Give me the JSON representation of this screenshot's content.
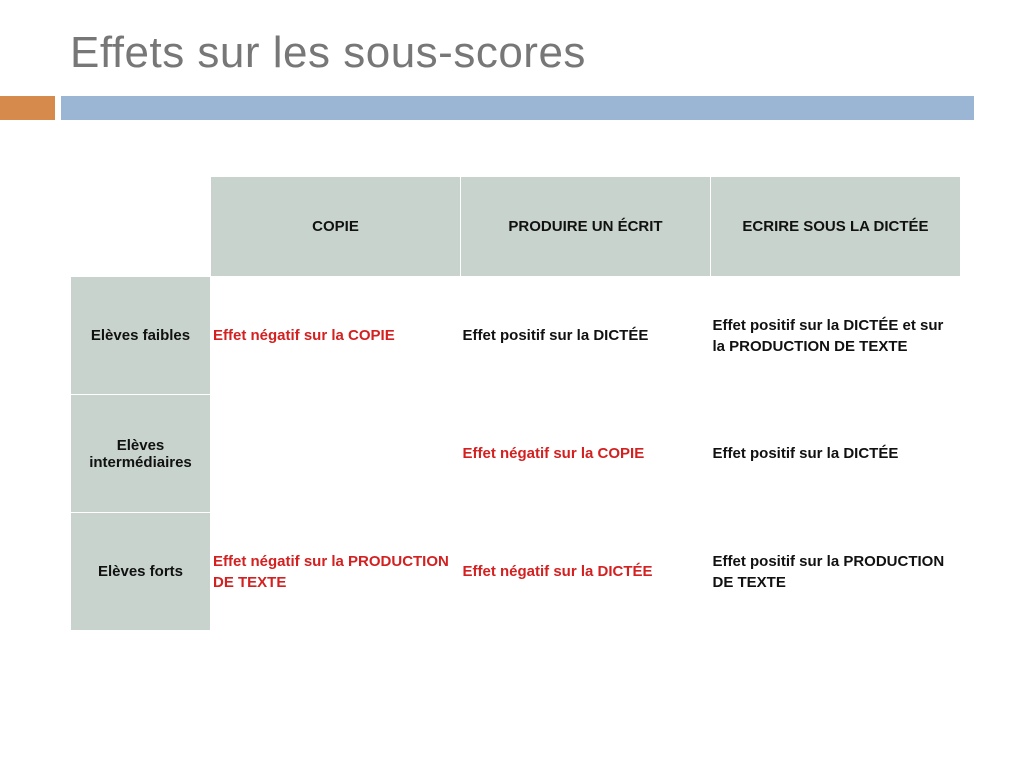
{
  "title": "Effets sur les sous-scores",
  "accent": {
    "orange": "#d68a4b",
    "blue": "#9bb5d5"
  },
  "table": {
    "header_bg": "#c7d3cc",
    "columns": [
      "COPIE",
      "PRODUIRE UN ÉCRIT",
      "ECRIRE SOUS LA DICTÉE"
    ],
    "rows": [
      {
        "label": "Elèves faibles",
        "cells": [
          {
            "text": "Effet négatif sur la COPIE",
            "tone": "neg"
          },
          {
            "text": "Effet positif sur la DICTÉE",
            "tone": "pos"
          },
          {
            "text": "Effet positif sur la DICTÉE et sur la PRODUCTION DE TEXTE",
            "tone": "pos"
          }
        ]
      },
      {
        "label": "Elèves intermédiaires",
        "cells": [
          {
            "text": "",
            "tone": "pos"
          },
          {
            "text": "Effet négatif sur la COPIE",
            "tone": "neg"
          },
          {
            "text": "Effet positif sur la DICTÉE",
            "tone": "pos"
          }
        ]
      },
      {
        "label": "Elèves forts",
        "cells": [
          {
            "text": "Effet négatif sur la PRODUCTION DE TEXTE",
            "tone": "neg"
          },
          {
            "text": "Effet négatif sur la DICTÉE",
            "tone": "neg"
          },
          {
            "text": "Effet positif sur la PRODUCTION DE TEXTE",
            "tone": "pos"
          }
        ]
      }
    ]
  }
}
